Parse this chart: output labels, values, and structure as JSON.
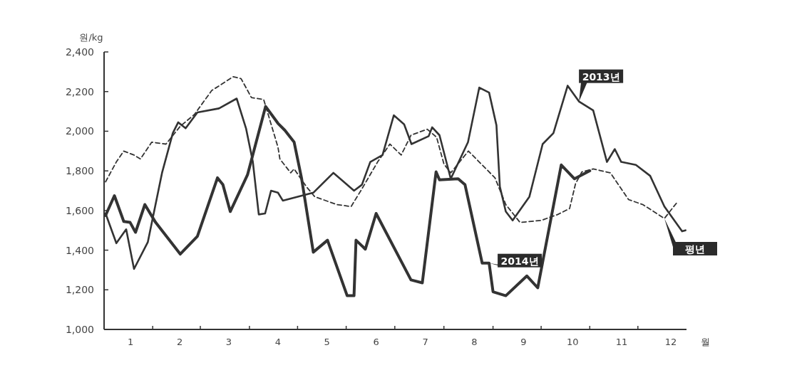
{
  "chart_data": {
    "type": "line",
    "ylabel": "원/kg",
    "xlabel": "월",
    "xlim": [
      0.46,
      12.32
    ],
    "xticks": [
      {
        "value": 1,
        "label": "1"
      },
      {
        "value": 2,
        "label": "2"
      },
      {
        "value": 3,
        "label": "3"
      },
      {
        "value": 4,
        "label": "4"
      },
      {
        "value": 5,
        "label": "5"
      },
      {
        "value": 6,
        "label": "6"
      },
      {
        "value": 7,
        "label": "7"
      },
      {
        "value": 8,
        "label": "8"
      },
      {
        "value": 9,
        "label": "9"
      },
      {
        "value": 10,
        "label": "10"
      },
      {
        "value": 11,
        "label": "11"
      },
      {
        "value": 12,
        "label": "12"
      },
      {
        "value": 1.45,
        "label": null
      },
      {
        "value": 2.42,
        "label": null
      },
      {
        "value": 3.42,
        "label": null
      },
      {
        "value": 4.4,
        "label": null
      },
      {
        "value": 5.39,
        "label": null
      },
      {
        "value": 6.38,
        "label": null
      },
      {
        "value": 7.38,
        "label": null
      },
      {
        "value": 8.38,
        "label": null
      },
      {
        "value": 9.36,
        "label": null
      },
      {
        "value": 10.35,
        "label": null
      },
      {
        "value": 11.33,
        "label": null
      }
    ],
    "ylim": [
      1000,
      2400
    ],
    "yticks": [
      {
        "value": 1000,
        "label": "1,000"
      },
      {
        "value": 1200,
        "label": "1,200"
      },
      {
        "value": 1400,
        "label": "1,400"
      },
      {
        "value": 1600,
        "label": "1,600"
      },
      {
        "value": 1800,
        "label": "1,800"
      },
      {
        "value": 2000,
        "label": "2,000"
      },
      {
        "value": 2200,
        "label": "2,200"
      },
      {
        "value": 2400,
        "label": "2,400"
      }
    ],
    "grid": false,
    "legend": false,
    "marker": "none",
    "series": [
      {
        "name": "2013년",
        "color": "#333333",
        "line_style": "solid",
        "x": [
          0.49,
          0.71,
          0.91,
          1.07,
          1.35,
          1.64,
          1.86,
          1.97,
          2.12,
          2.36,
          2.8,
          3.16,
          3.35,
          3.49,
          3.61,
          3.74,
          3.86,
          4.0,
          4.1,
          4.72,
          5.13,
          5.55,
          5.71,
          5.88,
          6.13,
          6.36,
          6.57,
          6.72,
          7.07,
          7.14,
          7.29,
          7.52,
          7.87,
          8.1,
          8.3,
          8.45,
          8.52,
          8.64,
          8.78,
          9.12,
          9.39,
          9.61,
          9.9,
          10.13,
          10.42,
          10.7,
          10.86,
          10.99,
          11.29,
          11.58,
          11.87,
          12.23,
          12.3
        ],
        "values": [
          1585,
          1435,
          1505,
          1305,
          1440,
          1790,
          1990,
          2045,
          2015,
          2095,
          2115,
          2165,
          2015,
          1845,
          1580,
          1585,
          1700,
          1690,
          1650,
          1690,
          1790,
          1700,
          1730,
          1845,
          1880,
          2080,
          2035,
          1935,
          1975,
          2020,
          1980,
          1760,
          1945,
          2220,
          2195,
          2030,
          1720,
          1595,
          1550,
          1670,
          1935,
          1990,
          2230,
          2150,
          2105,
          1845,
          1910,
          1845,
          1830,
          1775,
          1620,
          1495,
          1500
        ]
      },
      {
        "name": "평년",
        "color": "#333333",
        "line_style": "dashed",
        "x": [
          0.49,
          0.71,
          0.86,
          1.07,
          1.2,
          1.43,
          1.72,
          2.01,
          2.3,
          2.65,
          3.09,
          3.25,
          3.46,
          3.71,
          4.0,
          4.04,
          4.26,
          4.33,
          4.58,
          4.75,
          5.2,
          5.49,
          5.7,
          6.03,
          6.28,
          6.51,
          6.71,
          7.04,
          7.23,
          7.38,
          7.52,
          7.88,
          8.42,
          8.64,
          8.93,
          9.36,
          9.7,
          9.94,
          10.06,
          10.19,
          10.42,
          10.77,
          11.14,
          11.43,
          11.87,
          12.14
        ],
        "values": [
          1745,
          1845,
          1900,
          1880,
          1860,
          1945,
          1935,
          2025,
          2085,
          2205,
          2275,
          2265,
          2170,
          2160,
          1920,
          1860,
          1790,
          1810,
          1720,
          1670,
          1630,
          1620,
          1705,
          1845,
          1935,
          1880,
          1980,
          2010,
          1970,
          1835,
          1790,
          1900,
          1765,
          1630,
          1540,
          1550,
          1580,
          1610,
          1735,
          1795,
          1810,
          1790,
          1655,
          1630,
          1560,
          1645
        ]
      },
      {
        "name": "2014년",
        "color": "#333333",
        "line_style": "solid",
        "x": [
          0.49,
          0.67,
          0.86,
          0.99,
          1.1,
          1.29,
          1.51,
          2.01,
          2.36,
          2.77,
          2.88,
          3.03,
          3.38,
          3.75,
          4.0,
          4.14,
          4.33,
          4.48,
          4.72,
          5.01,
          5.41,
          5.55,
          5.59,
          5.78,
          6.0,
          6.71,
          6.94,
          7.22,
          7.29,
          7.67,
          7.81,
          8.16,
          8.3,
          8.38,
          8.64,
          9.07,
          9.29,
          9.77,
          10.04,
          10.35
        ],
        "values": [
          1575,
          1675,
          1545,
          1540,
          1490,
          1630,
          1540,
          1380,
          1470,
          1765,
          1730,
          1595,
          1780,
          2125,
          2040,
          2005,
          1945,
          1765,
          1390,
          1450,
          1170,
          1170,
          1450,
          1405,
          1585,
          1250,
          1235,
          1795,
          1755,
          1760,
          1730,
          1335,
          1335,
          1190,
          1170,
          1270,
          1210,
          1830,
          1760,
          1800
        ]
      }
    ]
  }
}
